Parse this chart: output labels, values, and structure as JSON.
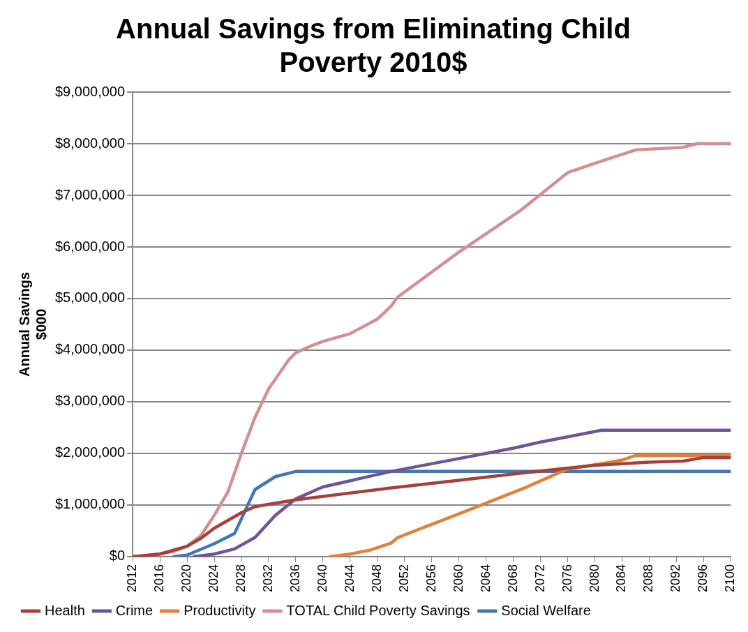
{
  "chart_data": {
    "type": "line",
    "title": "Annual Savings from Eliminating Child Poverty 2010$",
    "ylabel": "Annual Savings $000",
    "xlim": [
      2012,
      2100
    ],
    "xticks": [
      2012,
      2016,
      2020,
      2024,
      2028,
      2032,
      2036,
      2040,
      2044,
      2048,
      2052,
      2056,
      2060,
      2064,
      2068,
      2072,
      2076,
      2080,
      2084,
      2088,
      2092,
      2096,
      2100
    ],
    "ylim": [
      0,
      9000000
    ],
    "yticks": [
      {
        "value": 0,
        "label": "$0"
      },
      {
        "value": 1000000,
        "label": "$1,000,000"
      },
      {
        "value": 2000000,
        "label": "$2,000,000"
      },
      {
        "value": 3000000,
        "label": "$3,000,000"
      },
      {
        "value": 4000000,
        "label": "$4,000,000"
      },
      {
        "value": 5000000,
        "label": "$5,000,000"
      },
      {
        "value": 6000000,
        "label": "$6,000,000"
      },
      {
        "value": 7000000,
        "label": "$7,000,000"
      },
      {
        "value": 8000000,
        "label": "$8,000,000"
      },
      {
        "value": 9000000,
        "label": "$9,000,000"
      }
    ],
    "grid": "y",
    "legend": "bottom",
    "marker": "none",
    "line_style": "solid",
    "series": [
      {
        "name": "Health",
        "color": "#a5403d",
        "x": [
          2012,
          2016,
          2020,
          2022,
          2024,
          2028,
          2030,
          2036,
          2050,
          2060,
          2070,
          2080,
          2088,
          2093,
          2096,
          2100
        ],
        "values": [
          0,
          50000,
          200000,
          350000,
          550000,
          850000,
          970000,
          1100000,
          1330000,
          1480000,
          1630000,
          1770000,
          1830000,
          1850000,
          1920000,
          1920000
        ]
      },
      {
        "name": "Crime",
        "color": "#6f5597",
        "x": [
          2021,
          2024,
          2027,
          2030,
          2033,
          2036,
          2040,
          2044,
          2050,
          2060,
          2068,
          2072,
          2081,
          2100
        ],
        "values": [
          0,
          50000,
          150000,
          370000,
          800000,
          1120000,
          1350000,
          1470000,
          1650000,
          1900000,
          2100000,
          2220000,
          2450000,
          2450000
        ]
      },
      {
        "name": "Productivity",
        "color": "#e0823a",
        "x": [
          2041,
          2044,
          2047,
          2050,
          2051,
          2060,
          2070,
          2076,
          2081,
          2084,
          2086,
          2100
        ],
        "values": [
          0,
          50000,
          130000,
          260000,
          370000,
          830000,
          1350000,
          1700000,
          1800000,
          1870000,
          1960000,
          1960000
        ]
      },
      {
        "name": "TOTAL Child Poverty Savings",
        "color": "#d49090",
        "x": [
          2012,
          2016,
          2018,
          2020,
          2022,
          2024,
          2026,
          2028,
          2030,
          2032,
          2035,
          2036,
          2038,
          2040,
          2044,
          2048,
          2050,
          2051,
          2060,
          2069,
          2076,
          2080,
          2086,
          2093,
          2095,
          2100
        ],
        "values": [
          0,
          50000,
          100000,
          200000,
          400000,
          800000,
          1250000,
          2000000,
          2700000,
          3250000,
          3820000,
          3950000,
          4070000,
          4170000,
          4320000,
          4600000,
          4850000,
          5030000,
          5900000,
          6700000,
          7440000,
          7620000,
          7880000,
          7930000,
          8000000,
          8000000
        ]
      },
      {
        "name": "Social Welfare",
        "color": "#4477b0",
        "x": [
          2018,
          2020,
          2024,
          2027,
          2030,
          2033,
          2036,
          2100
        ],
        "values": [
          0,
          30000,
          250000,
          450000,
          1300000,
          1550000,
          1650000,
          1650000
        ]
      }
    ]
  }
}
